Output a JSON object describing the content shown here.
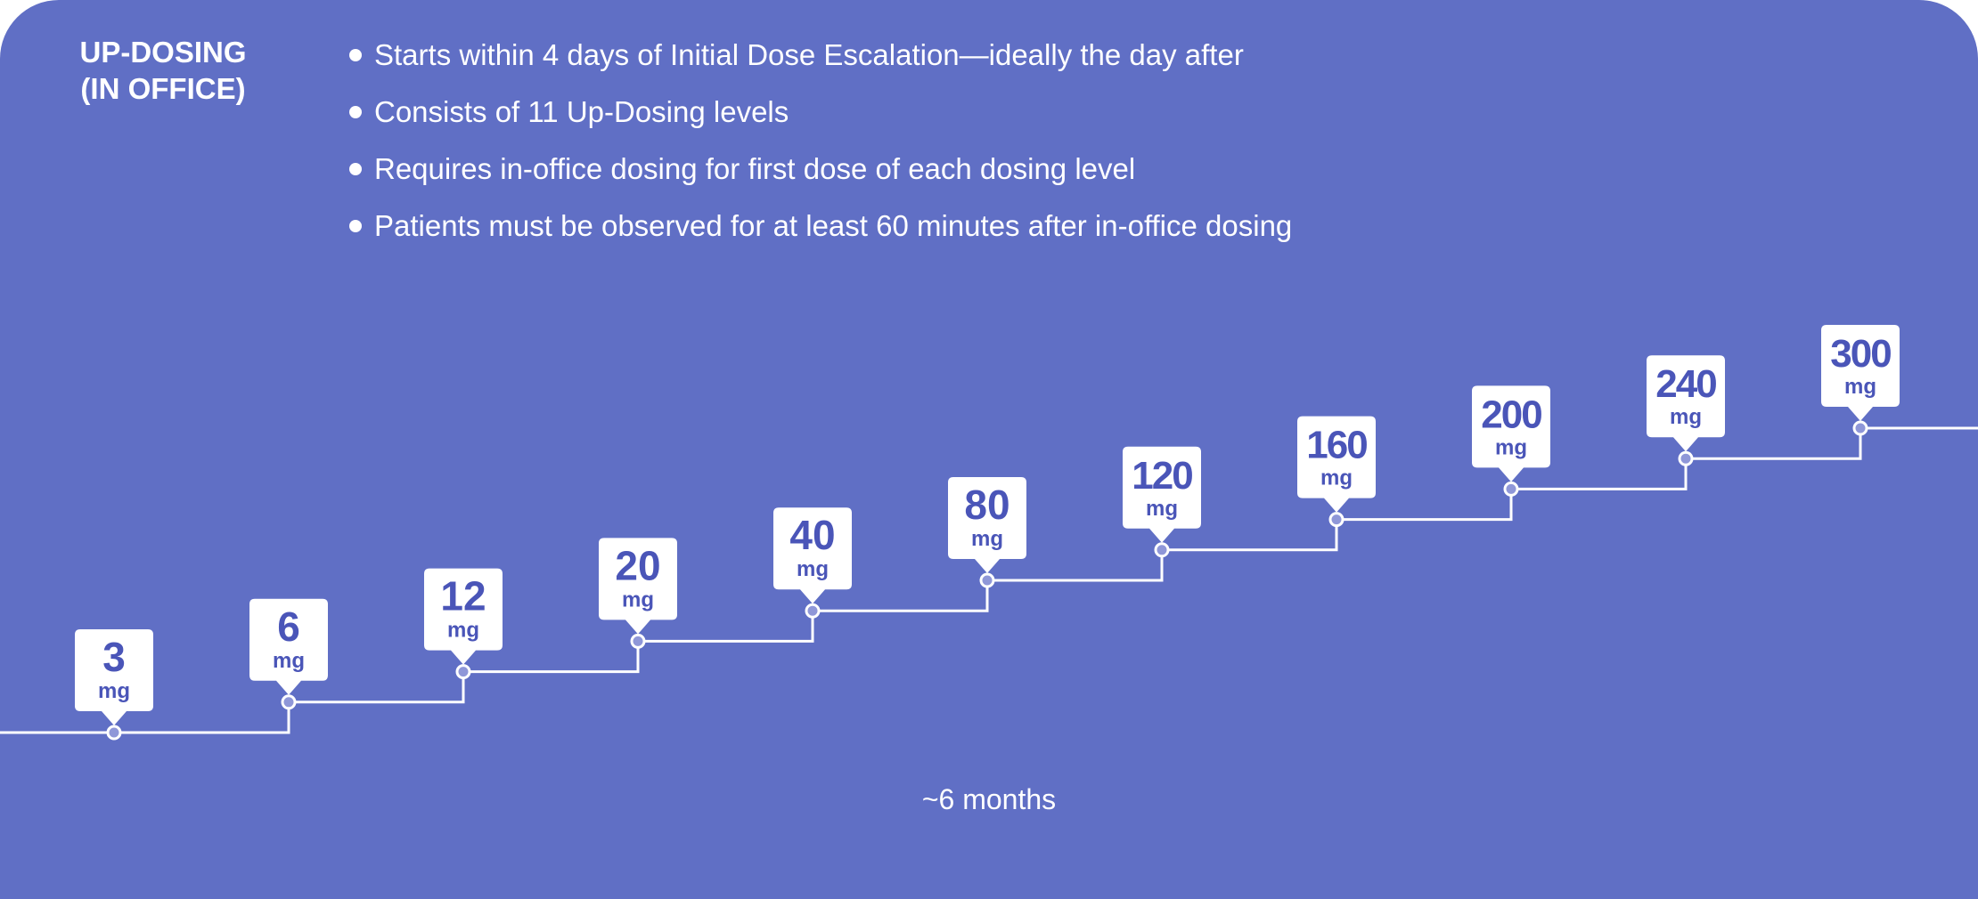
{
  "phase": {
    "title_line1": "UP-DOSING",
    "title_line2": "(IN OFFICE)"
  },
  "bullets": [
    "Starts within 4 days of Initial Dose Escalation—ideally the day after",
    "Consists of 11 Up-Dosing levels",
    "Requires in-office dosing for first dose of each dosing level",
    "Patients must be observed for at least 60 minutes after in-office dosing"
  ],
  "chart_data": {
    "type": "line",
    "x": [
      1,
      2,
      3,
      4,
      5,
      6,
      7,
      8,
      9,
      10,
      11
    ],
    "values": [
      "3",
      "6",
      "12",
      "20",
      "40",
      "80",
      "120",
      "160",
      "200",
      "240",
      "300"
    ],
    "unit": "mg",
    "duration_label": "~6 months"
  },
  "colors": {
    "background": "#606fc5",
    "label_text": "#4a55b8",
    "line": "#ffffff",
    "marker_fill": "#8f97d8"
  }
}
